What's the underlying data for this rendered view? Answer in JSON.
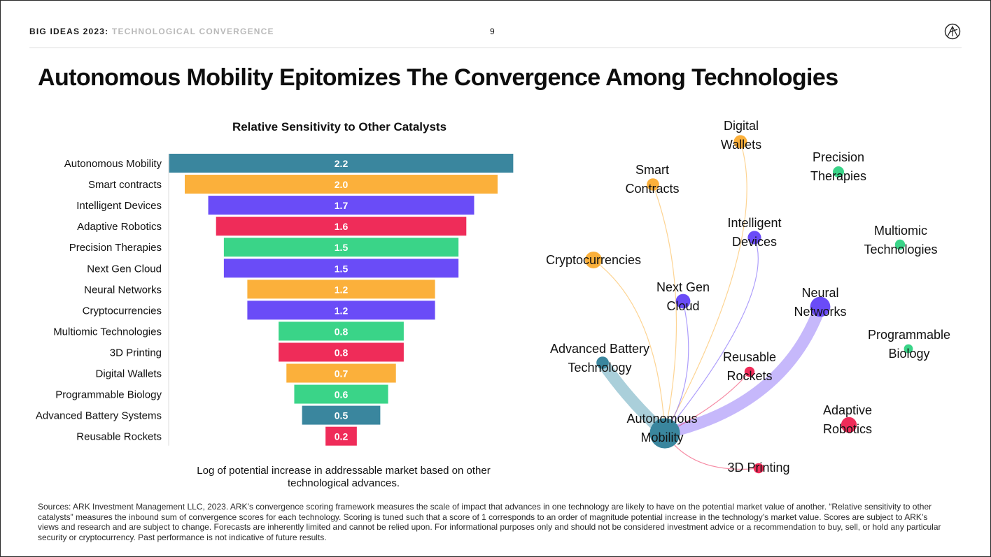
{
  "header": {
    "series": "BIG IDEAS 2023:",
    "topic": "TECHNOLOGICAL CONVERGENCE",
    "page_number": "9"
  },
  "title": "Autonomous Mobility Epitomizes The Convergence Among Technologies",
  "colors": {
    "teal": "#3a869e",
    "orange": "#fbb03b",
    "purple": "#6a4cf7",
    "red": "#ef2c59",
    "green": "#3ad488",
    "light_teal": "#a5ccd8",
    "light_purple": "#c3b4fb"
  },
  "chart_data": [
    {
      "type": "bar",
      "orientation": "horizontal-centered",
      "title": "Relative Sensitivity to Other Catalysts",
      "xlabel": "Log of potential increase in addressable market based on other technological advances.",
      "categories": [
        "Autonomous Mobility",
        "Smart contracts",
        "Intelligent Devices",
        "Adaptive Robotics",
        "Precision Therapies",
        "Next Gen Cloud",
        "Neural Networks",
        "Cryptocurrencies",
        "Multiomic Technologies",
        "3D Printing",
        "Digital Wallets",
        "Programmable Biology",
        "Advanced Battery Systems",
        "Reusable Rockets"
      ],
      "values": [
        2.2,
        2.0,
        1.7,
        1.6,
        1.5,
        1.5,
        1.2,
        1.2,
        0.8,
        0.8,
        0.7,
        0.6,
        0.5,
        0.2
      ],
      "value_labels": [
        "2.2",
        "2.0",
        "1.7",
        "1.6",
        "1.5",
        "1.5",
        "1.2",
        "1.2",
        "0.8",
        "0.8",
        "0.7",
        "0.6",
        "0.5",
        "0.2"
      ],
      "colors": [
        "#3a869e",
        "#fbb03b",
        "#6a4cf7",
        "#ef2c59",
        "#3ad488",
        "#6a4cf7",
        "#fbb03b",
        "#6a4cf7",
        "#3ad488",
        "#ef2c59",
        "#fbb03b",
        "#3ad488",
        "#3a869e",
        "#ef2c59"
      ]
    },
    {
      "type": "network",
      "nodes": [
        {
          "id": "autonomous",
          "label": [
            "Autonomous",
            "Mobility"
          ],
          "color": "#3a869e",
          "size": 2.2
        },
        {
          "id": "digital_wallets",
          "label": [
            "Digital",
            "Wallets"
          ],
          "color": "#fbb03b",
          "size": 0.7
        },
        {
          "id": "precision",
          "label": [
            "Precision",
            "Therapies"
          ],
          "color": "#3ad488",
          "size": 0.5
        },
        {
          "id": "smart_contracts",
          "label": [
            "Smart",
            "Contracts"
          ],
          "color": "#fbb03b",
          "size": 0.6
        },
        {
          "id": "intelligent",
          "label": [
            "Intelligent",
            "Devices"
          ],
          "color": "#6a4cf7",
          "size": 0.7
        },
        {
          "id": "multiomic",
          "label": [
            "Multiomic",
            "Technologies"
          ],
          "color": "#3ad488",
          "size": 0.4
        },
        {
          "id": "crypto",
          "label": [
            "Cryptocurrencies"
          ],
          "color": "#fbb03b",
          "size": 1.0
        },
        {
          "id": "next_gen_cloud",
          "label": [
            "Next Gen",
            "Cloud"
          ],
          "color": "#6a4cf7",
          "size": 0.8
        },
        {
          "id": "neural",
          "label": [
            "Neural",
            "Networks"
          ],
          "color": "#6a4cf7",
          "size": 1.3
        },
        {
          "id": "programmable",
          "label": [
            "Programmable",
            "Biology"
          ],
          "color": "#3ad488",
          "size": 0.3
        },
        {
          "id": "battery",
          "label": [
            "Advanced Battery",
            "Technology"
          ],
          "color": "#3a869e",
          "size": 0.6
        },
        {
          "id": "rockets",
          "label": [
            "Reusable",
            "Rockets"
          ],
          "color": "#ef2c59",
          "size": 0.4
        },
        {
          "id": "robotics",
          "label": [
            "Adaptive",
            "Robotics"
          ],
          "color": "#ef2c59",
          "size": 0.9
        },
        {
          "id": "printing",
          "label": [
            "3D Printing"
          ],
          "color": "#ef2c59",
          "size": 0.4
        }
      ],
      "edges": [
        {
          "from": "battery",
          "to": "autonomous",
          "color": "#a5ccd8",
          "weight": 3
        },
        {
          "from": "neural",
          "to": "autonomous",
          "color": "#c3b4fb",
          "weight": 3
        },
        {
          "from": "crypto",
          "to": "autonomous",
          "color": "#fbb03b",
          "weight": 1
        },
        {
          "from": "smart_contracts",
          "to": "autonomous",
          "color": "#fbb03b",
          "weight": 1
        },
        {
          "from": "digital_wallets",
          "to": "autonomous",
          "color": "#fbb03b",
          "weight": 1
        },
        {
          "from": "next_gen_cloud",
          "to": "autonomous",
          "color": "#6a4cf7",
          "weight": 1
        },
        {
          "from": "intelligent",
          "to": "autonomous",
          "color": "#6a4cf7",
          "weight": 1
        },
        {
          "from": "rockets",
          "to": "autonomous",
          "color": "#ef2c59",
          "weight": 1
        },
        {
          "from": "printing",
          "to": "autonomous",
          "color": "#ef2c59",
          "weight": 1
        }
      ]
    }
  ],
  "sources": "Sources: ARK Investment Management LLC, 2023. ARK’s convergence scoring framework measures the scale of impact that advances in one technology are likely to have on the potential market value of another. “Relative sensitivity to other catalysts” measures the inbound sum of convergence scores for each technology. Scoring is tuned such that a score of 1 corresponds to an order of magnitude potential increase in the technology’s market value. Scores are subject to ARK’s views and research and are subject to change. Forecasts are inherently limited and cannot be relied upon. For informational purposes only and should not be considered investment advice or a recommendation to buy, sell, or hold any particular security or cryptocurrency. Past performance is not indicative of future results."
}
